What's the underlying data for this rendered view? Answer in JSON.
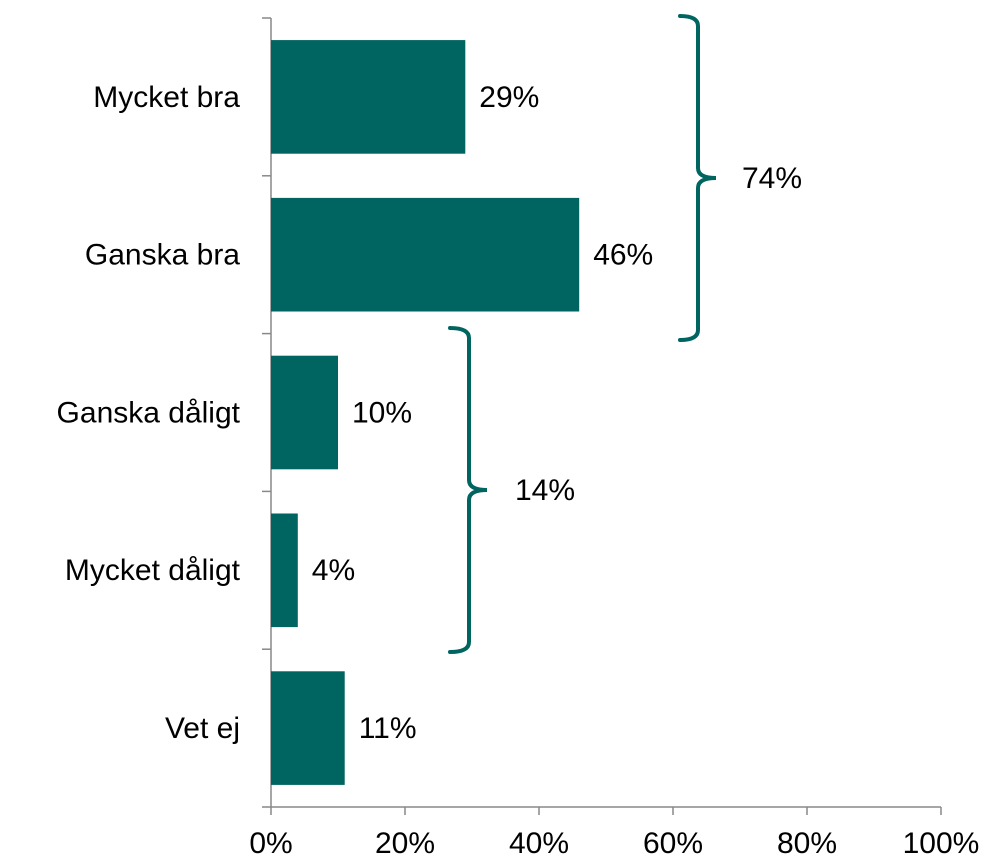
{
  "chart_data": {
    "type": "hbar",
    "categories": [
      "Mycket bra",
      "Ganska bra",
      "Ganska dåligt",
      "Mycket dåligt",
      "Vet ej"
    ],
    "values": [
      29,
      46,
      10,
      4,
      11
    ],
    "value_labels": [
      "29%",
      "46%",
      "10%",
      "4%",
      "11%"
    ],
    "color": "#006560",
    "xlim": [
      0,
      100
    ],
    "xticks": [
      {
        "value": 0,
        "label": "0%"
      },
      {
        "value": 20,
        "label": "20%"
      },
      {
        "value": 40,
        "label": "40%"
      },
      {
        "value": 60,
        "label": "60%"
      },
      {
        "value": 80,
        "label": "80%"
      },
      {
        "value": 100,
        "label": "100%"
      }
    ],
    "annotations": [
      {
        "text": "74%"
      },
      {
        "text": "14%"
      }
    ]
  }
}
